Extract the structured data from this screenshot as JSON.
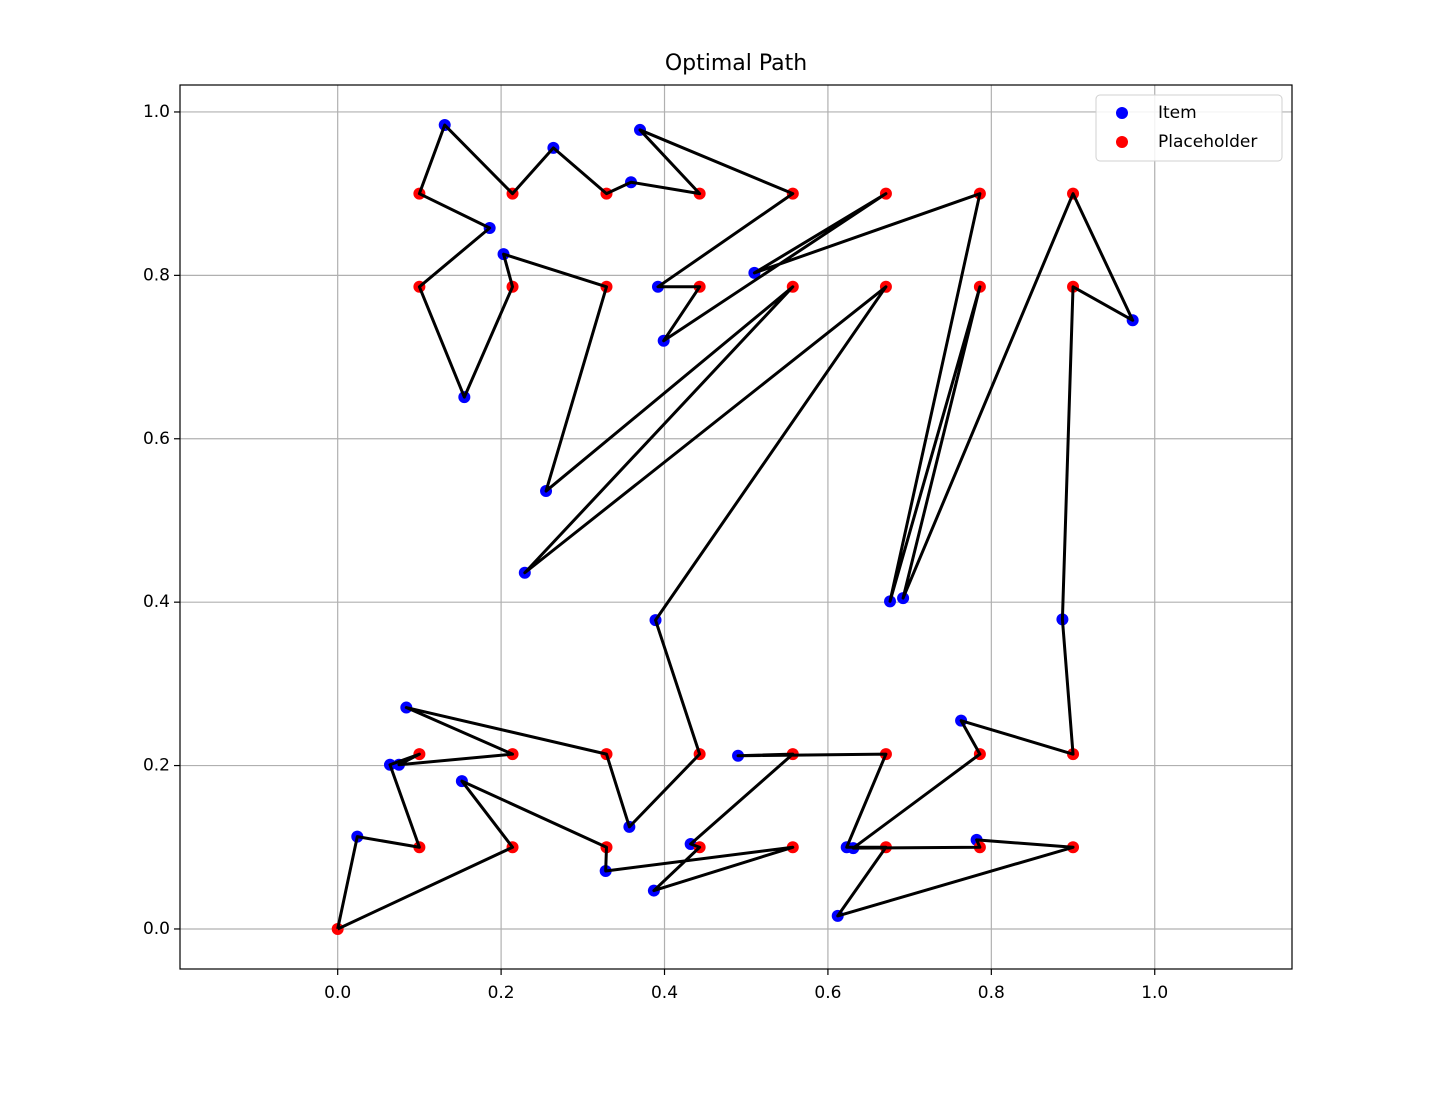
{
  "chart_data": {
    "type": "scatter",
    "title": "Optimal Path",
    "xlim": [
      -0.193,
      1.168
    ],
    "ylim": [
      -0.049,
      1.033
    ],
    "xticks": [
      {
        "value": 0,
        "label": "0.0"
      },
      0.2,
      0.4,
      0.6,
      0.8,
      {
        "value": 1,
        "label": "1.0"
      }
    ],
    "yticks": [
      {
        "value": 0,
        "label": "0.0"
      },
      0.2,
      0.4,
      0.6,
      0.8,
      {
        "value": 1,
        "label": "1.0"
      }
    ],
    "grid": true,
    "legend": "upper right",
    "series": [
      {
        "name": "Item",
        "color": "#0000ff",
        "x": [
          0.131,
          0.186,
          0.203,
          0.264,
          0.359,
          0.37,
          0.155,
          0.255,
          0.229,
          0.392,
          0.399,
          0.51,
          0.389,
          0.676,
          0.692,
          0.973,
          0.887,
          0.763,
          0.084,
          0.064,
          0.075,
          0.152,
          0.024,
          0.357,
          0.328,
          0.387,
          0.432,
          0.49,
          0.623,
          0.631,
          0.612,
          0.782
        ],
        "values": [
          0.984,
          0.858,
          0.826,
          0.956,
          0.914,
          0.978,
          0.651,
          0.536,
          0.436,
          0.786,
          0.72,
          0.803,
          0.378,
          0.401,
          0.405,
          0.745,
          0.379,
          0.255,
          0.271,
          0.201,
          0.201,
          0.181,
          0.113,
          0.125,
          0.071,
          0.047,
          0.104,
          0.212,
          0.1,
          0.099,
          0.016,
          0.109
        ]
      },
      {
        "name": "Placeholder",
        "color": "#ff0000",
        "x": [
          0,
          0.1,
          0.214,
          0.329,
          0.443,
          0.557,
          0.671,
          0.786,
          0.9,
          0.1,
          0.214,
          0.329,
          0.443,
          0.557,
          0.671,
          0.786,
          0.9,
          0.1,
          0.214,
          0.329,
          0.443,
          0.557,
          0.671,
          0.786,
          0.9,
          0.1,
          0.214,
          0.329,
          0.443,
          0.557,
          0.671,
          0.786,
          0.9
        ],
        "values": [
          0,
          0.1,
          0.1,
          0.1,
          0.1,
          0.1,
          0.1,
          0.1,
          0.1,
          0.214,
          0.214,
          0.214,
          0.214,
          0.214,
          0.214,
          0.214,
          0.214,
          0.786,
          0.786,
          0.786,
          0.786,
          0.786,
          0.786,
          0.786,
          0.786,
          0.9,
          0.9,
          0.9,
          0.9,
          0.9,
          0.9,
          0.9,
          0.9
        ]
      }
    ],
    "path": {
      "color": "#000000",
      "x": [
        0,
        0.024,
        0.1,
        0.064,
        0.1,
        0.075,
        0.214,
        0.084,
        0.329,
        0.357,
        0.443,
        0.389,
        0.671,
        0.229,
        0.557,
        0.255,
        0.329,
        0.203,
        0.214,
        0.155,
        0.1,
        0.186,
        0.1,
        0.131,
        0.214,
        0.264,
        0.329,
        0.359,
        0.443,
        0.37,
        0.557,
        0.392,
        0.443,
        0.399,
        0.671,
        0.51,
        0.786,
        0.676,
        0.786,
        0.692,
        0.9,
        0.973,
        0.9,
        0.887,
        0.9,
        0.763,
        0.786,
        0.631,
        0.786,
        0.782,
        0.9,
        0.612,
        0.671,
        0.623,
        0.671,
        0.49,
        0.557,
        0.432,
        0.443,
        0.387,
        0.557,
        0.328,
        0.329,
        0.152,
        0.214,
        0
      ],
      "values": [
        0,
        0.113,
        0.1,
        0.201,
        0.214,
        0.201,
        0.214,
        0.271,
        0.214,
        0.125,
        0.214,
        0.378,
        0.786,
        0.436,
        0.786,
        0.536,
        0.786,
        0.826,
        0.786,
        0.651,
        0.786,
        0.858,
        0.9,
        0.984,
        0.9,
        0.956,
        0.9,
        0.914,
        0.9,
        0.978,
        0.9,
        0.786,
        0.786,
        0.72,
        0.9,
        0.803,
        0.9,
        0.401,
        0.786,
        0.405,
        0.9,
        0.745,
        0.786,
        0.379,
        0.214,
        0.255,
        0.214,
        0.099,
        0.1,
        0.109,
        0.1,
        0.016,
        0.1,
        0.1,
        0.214,
        0.212,
        0.214,
        0.104,
        0.1,
        0.047,
        0.1,
        0.071,
        0.1,
        0.181,
        0.1,
        0
      ]
    }
  }
}
